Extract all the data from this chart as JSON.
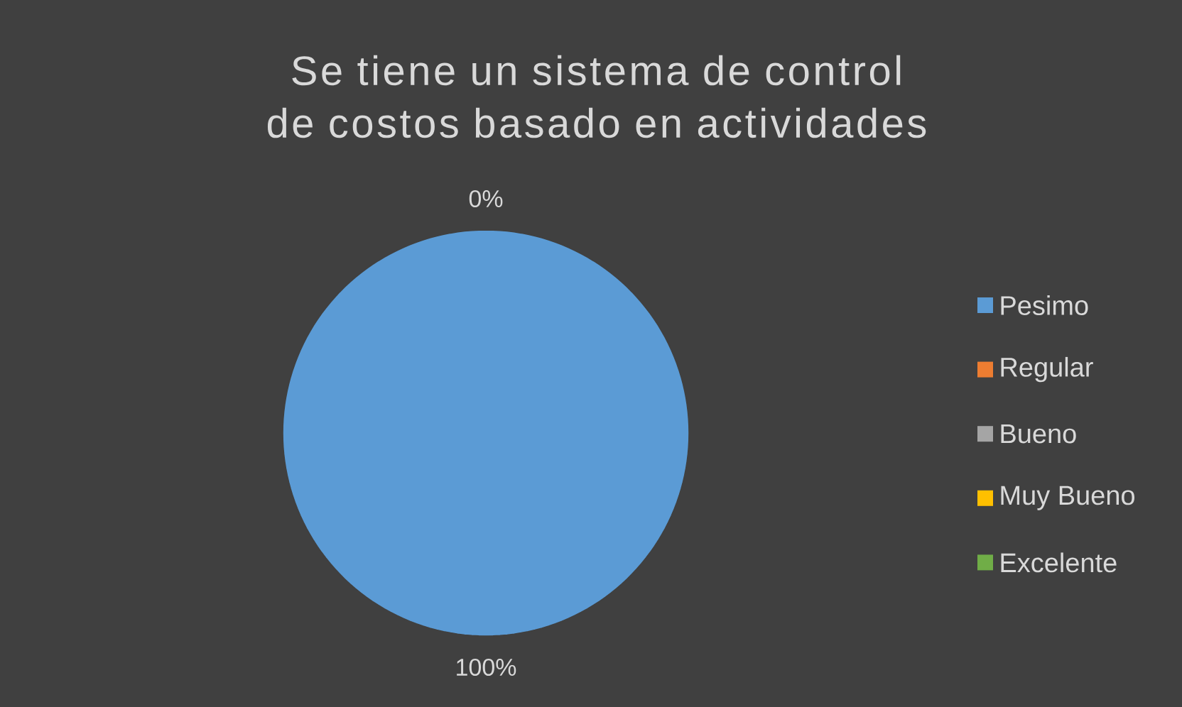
{
  "chart_data": {
    "type": "pie",
    "title": "Se tiene un sistema de control de costos basado en actividades",
    "categories": [
      "Pesimo",
      "Regular",
      "Bueno",
      "Muy Bueno",
      "Excelente"
    ],
    "values": [
      100,
      0,
      0,
      0,
      0
    ],
    "colors": [
      "#5b9bd5",
      "#ed7d31",
      "#a5a5a5",
      "#ffc000",
      "#70ad47"
    ],
    "value_labels": [
      "100%",
      "0%",
      null,
      null,
      null
    ],
    "legend": "right"
  }
}
